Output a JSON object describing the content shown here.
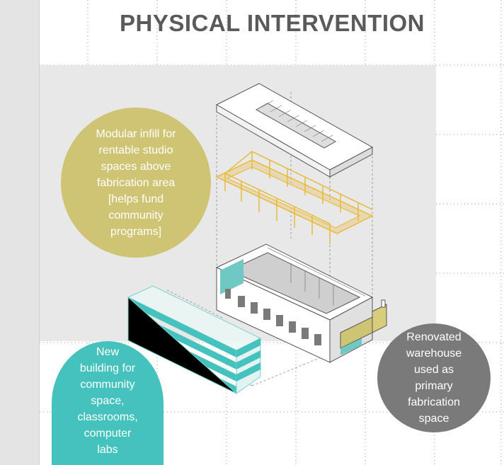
{
  "title": "PHYSICAL INTERVENTION",
  "callouts": {
    "modular_infill": "Modular infill for\nrentable studio\nspaces above\nfabrication area\n[helps fund\ncommunity\nprograms]",
    "new_building": "New\nbuilding for\ncommunity\nspace,\nclassrooms,\ncomputer\nlabs",
    "renovated_warehouse": "Renovated\nwarehouse\nused as\nprimary\nfabrication\nspace"
  },
  "colors": {
    "yellow": "#cfc473",
    "teal": "#45c2bd",
    "gray": "#7a7a7a",
    "title": "#5a5a5a"
  }
}
